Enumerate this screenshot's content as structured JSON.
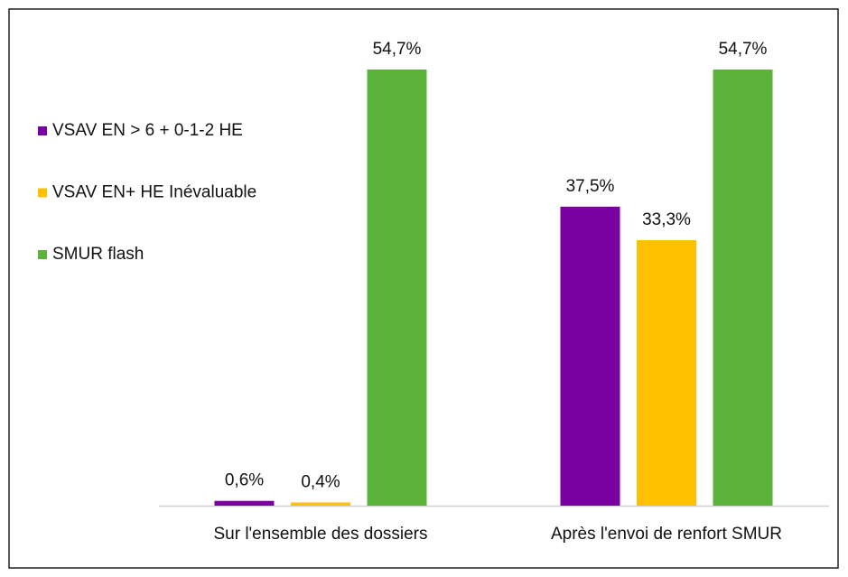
{
  "chart_data": {
    "type": "bar",
    "categories": [
      "Sur l'ensemble des dossiers",
      "Après l'envoi de renfort SMUR"
    ],
    "series": [
      {
        "name": "VSAV EN > 6 + 0-1-2 HE",
        "color": "#7b00a0",
        "values": [
          0.6,
          37.5
        ],
        "value_labels": [
          "0,6%",
          "37,5%"
        ]
      },
      {
        "name": "VSAV EN+ HE Inévaluable",
        "color": "#ffc000",
        "values": [
          0.4,
          33.3
        ],
        "value_labels": [
          "0,4%",
          "33,3%"
        ]
      },
      {
        "name": "SMUR flash",
        "color": "#5bb33c",
        "values": [
          54.7,
          54.7
        ],
        "value_labels": [
          "54,7%",
          "54,7%"
        ]
      }
    ],
    "legend": "top-left"
  }
}
